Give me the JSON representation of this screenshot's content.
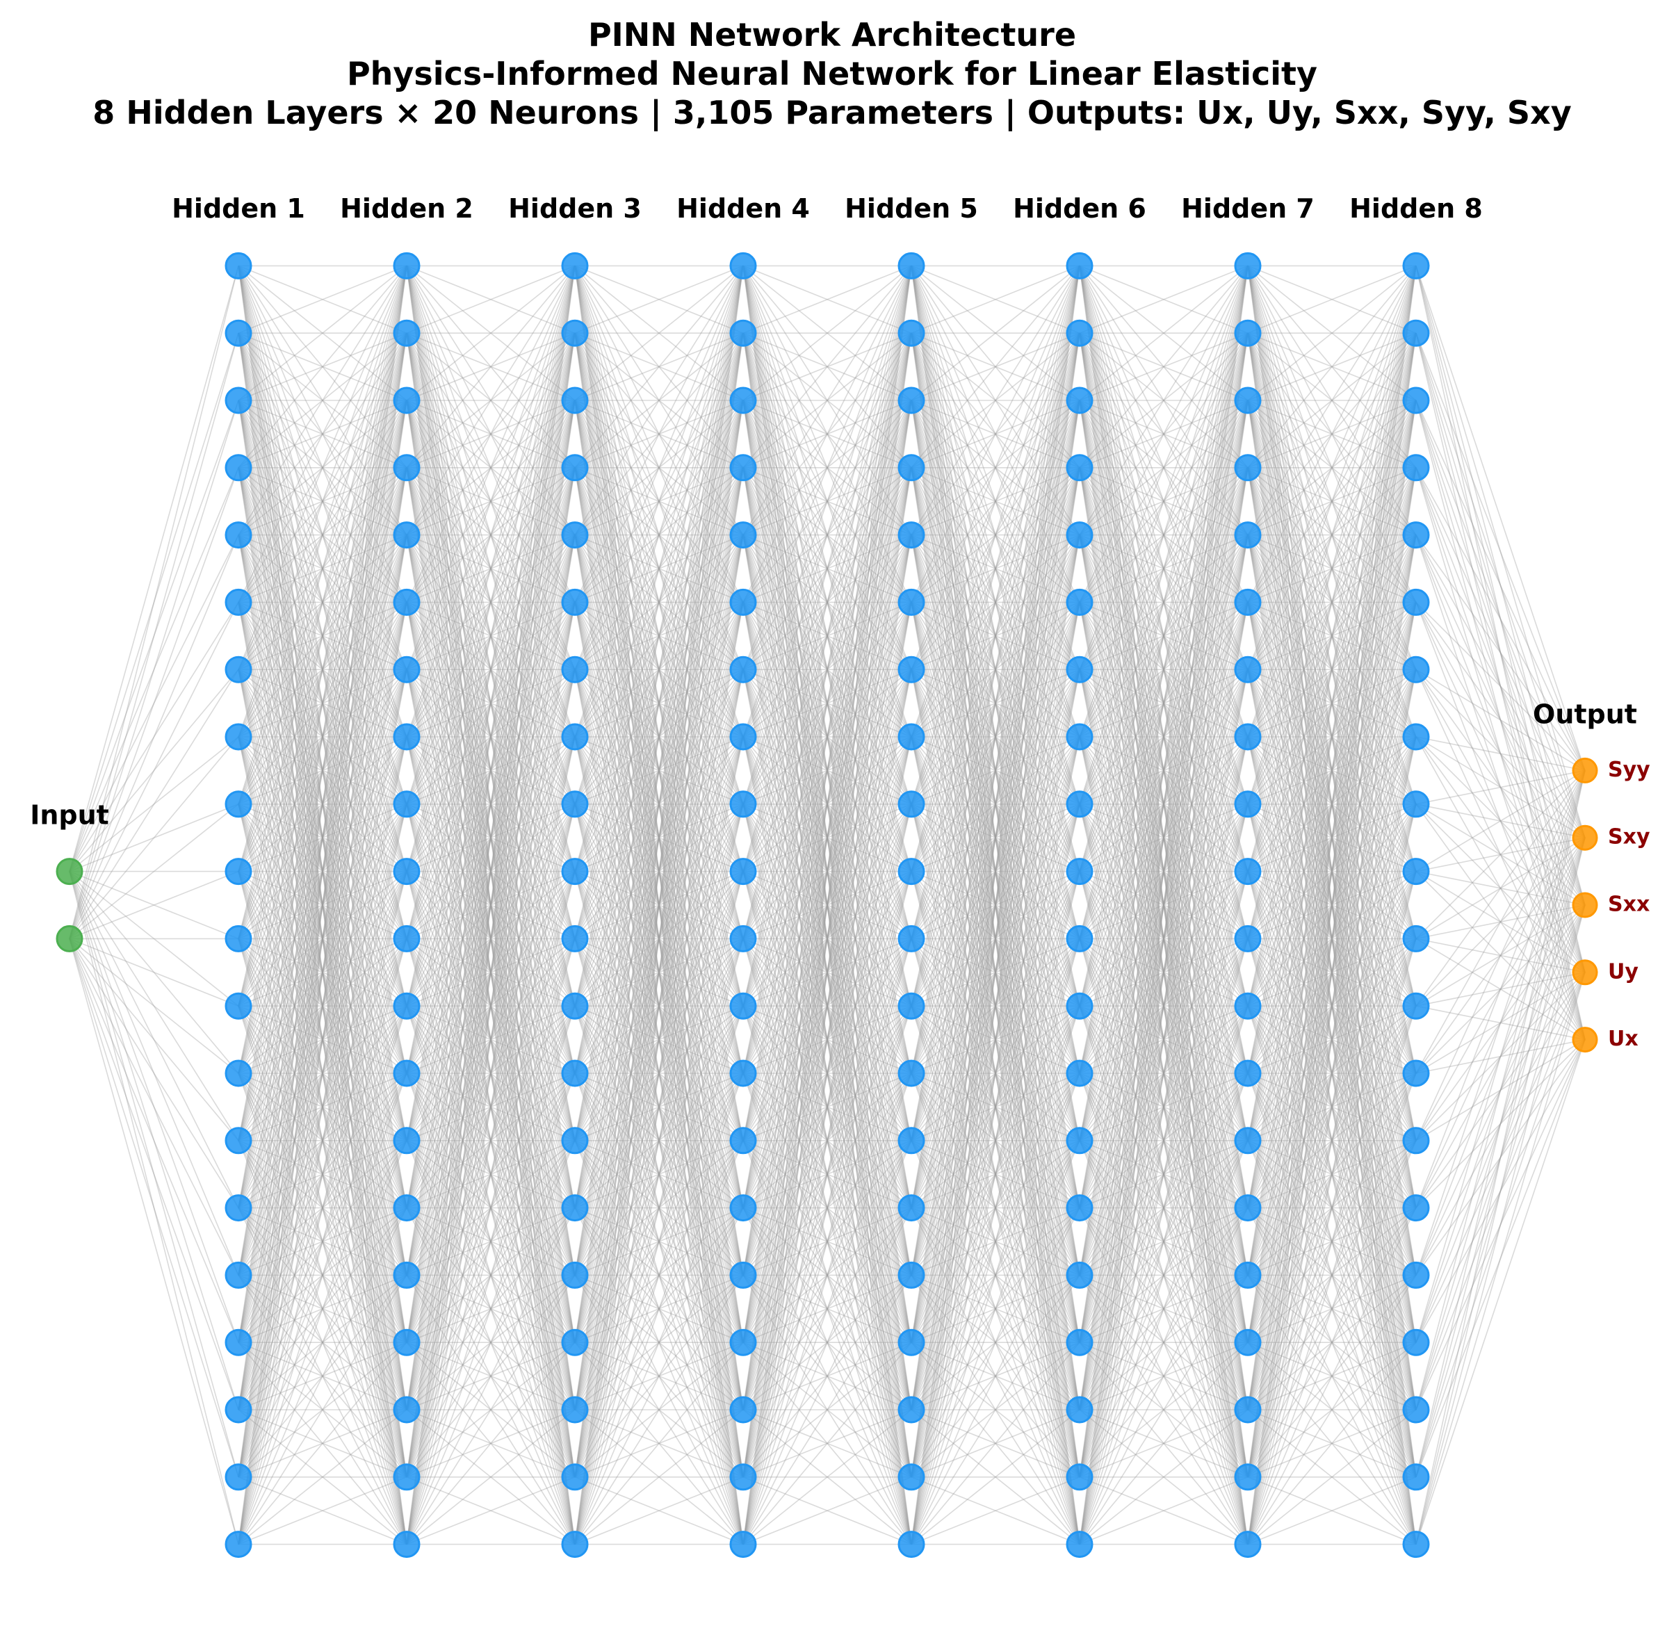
{
  "title_lines": [
    "PINN Network Architecture",
    "Physics-Informed Neural Network for Linear Elasticity",
    "8 Hidden Layers × 20 Neurons | 3,105 Parameters | Outputs: Ux, Uy, Sxx, Syy, Sxy"
  ],
  "layers": [
    {
      "name": "Input",
      "neurons": 2,
      "kind": "input"
    },
    {
      "name": "Hidden 1",
      "neurons": 20,
      "kind": "hidden"
    },
    {
      "name": "Hidden 2",
      "neurons": 20,
      "kind": "hidden"
    },
    {
      "name": "Hidden 3",
      "neurons": 20,
      "kind": "hidden"
    },
    {
      "name": "Hidden 4",
      "neurons": 20,
      "kind": "hidden"
    },
    {
      "name": "Hidden 5",
      "neurons": 20,
      "kind": "hidden"
    },
    {
      "name": "Hidden 6",
      "neurons": 20,
      "kind": "hidden"
    },
    {
      "name": "Hidden 7",
      "neurons": 20,
      "kind": "hidden"
    },
    {
      "name": "Hidden 8",
      "neurons": 20,
      "kind": "hidden"
    },
    {
      "name": "Output",
      "neurons": 5,
      "kind": "output"
    }
  ],
  "output_labels_top_to_bottom": [
    "Syy",
    "Sxy",
    "Sxx",
    "Uy",
    "Ux"
  ],
  "colors": {
    "input": "#4caf50",
    "hidden": "#2196f3",
    "output": "#ff9800",
    "edge": "#9e9e9e",
    "output_label": "#8b0000"
  }
}
